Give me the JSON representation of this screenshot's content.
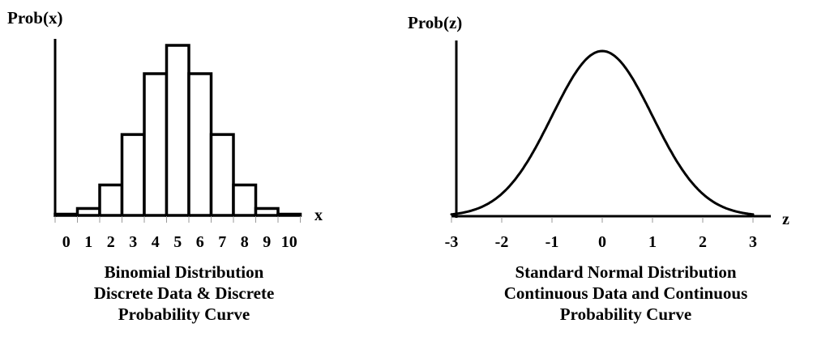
{
  "chart_data": [
    {
      "type": "bar",
      "title": "Binomial Distribution Discrete Data & Discrete Probability Curve",
      "caption_lines": [
        "Binomial Distribution",
        "Discrete Data & Discrete",
        "Probability Curve"
      ],
      "xlabel": "x",
      "ylabel": "Prob(x)",
      "categories": [
        "0",
        "1",
        "2",
        "3",
        "4",
        "5",
        "6",
        "7",
        "8",
        "9",
        "10"
      ],
      "values": [
        0.001,
        0.01,
        0.044,
        0.117,
        0.205,
        0.246,
        0.205,
        0.117,
        0.044,
        0.01,
        0.001
      ],
      "ylim": [
        0,
        0.3
      ],
      "grid": false,
      "legend": null,
      "bar_fill": "#ffffff",
      "bar_stroke": "#000000"
    },
    {
      "type": "line",
      "title": "Standard Normal Distribution Continuous Data and Continuous Probability Curve",
      "caption_lines": [
        "Standard Normal Distribution",
        "Continuous Data and Continuous",
        "Probability Curve"
      ],
      "xlabel": "z",
      "ylabel": "Prob(z)",
      "x_ticks": [
        "-3",
        "-2",
        "-1",
        "0",
        "1",
        "2",
        "3"
      ],
      "x": [
        -3.0,
        -2.5,
        -2.0,
        -1.5,
        -1.0,
        -0.5,
        0.0,
        0.5,
        1.0,
        1.5,
        2.0,
        2.5,
        3.0
      ],
      "values": [
        0.004,
        0.018,
        0.054,
        0.13,
        0.242,
        0.352,
        0.399,
        0.352,
        0.242,
        0.13,
        0.054,
        0.018,
        0.004
      ],
      "xlim": [
        -3,
        3
      ],
      "ylim": [
        0,
        0.45
      ],
      "grid": false,
      "legend": null,
      "line_color": "#000000"
    }
  ],
  "left": {
    "ylabel": "Prob(x)",
    "xname": "x",
    "caption": [
      "Binomial Distribution",
      "Discrete Data & Discrete",
      "Probability Curve"
    ]
  },
  "right": {
    "ylabel": "Prob(z)",
    "xname": "z",
    "caption": [
      "Standard Normal Distribution",
      "Continuous Data and Continuous",
      "Probability Curve"
    ]
  }
}
